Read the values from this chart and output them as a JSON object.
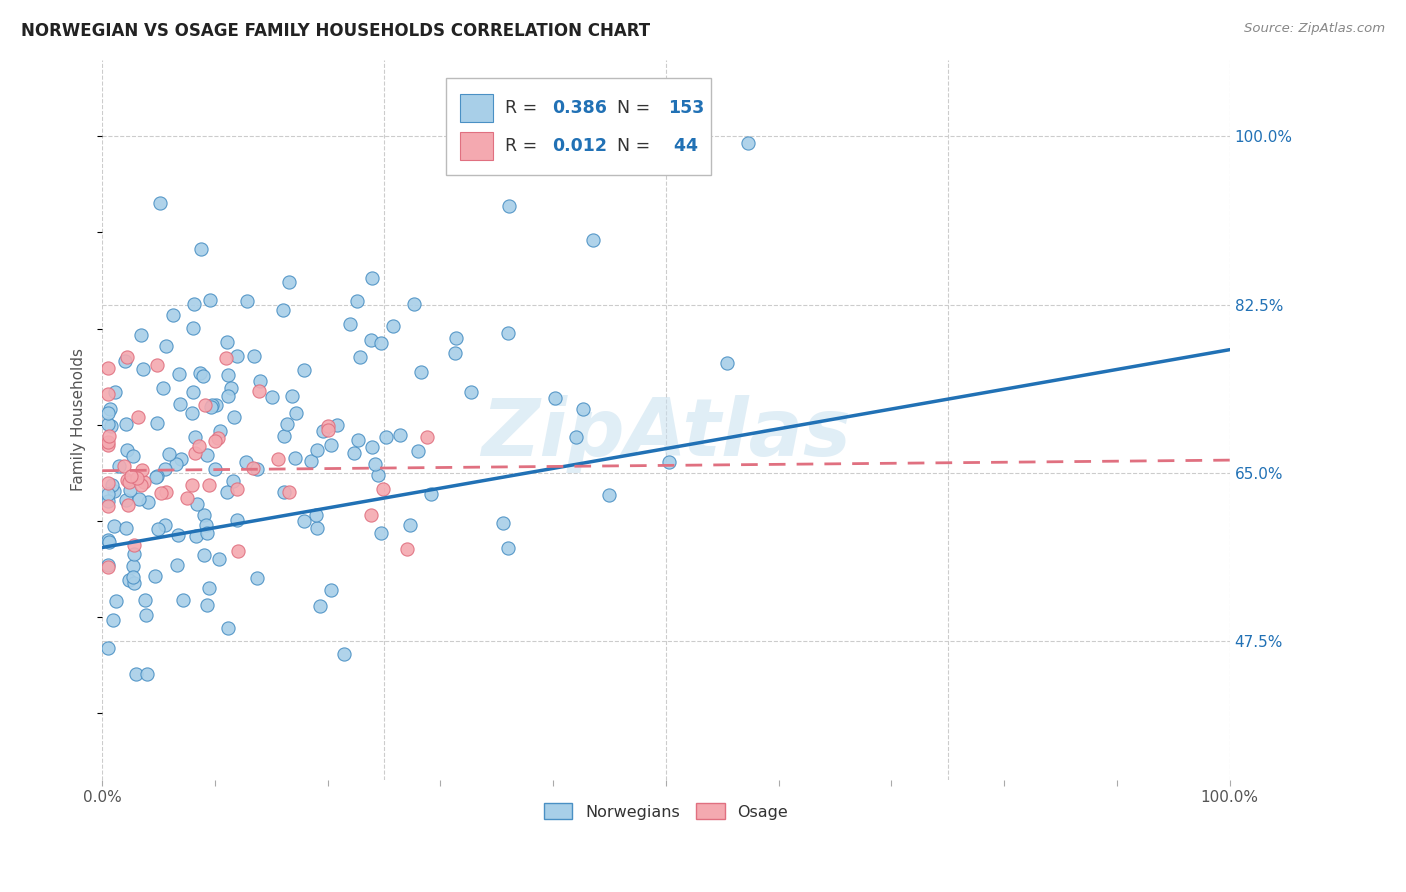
{
  "title": "NORWEGIAN VS OSAGE FAMILY HOUSEHOLDS CORRELATION CHART",
  "source": "Source: ZipAtlas.com",
  "ylabel": "Family Households",
  "y_tick_labels": [
    "47.5%",
    "65.0%",
    "82.5%",
    "100.0%"
  ],
  "y_tick_values": [
    0.475,
    0.65,
    0.825,
    1.0
  ],
  "x_range": [
    0.0,
    1.0
  ],
  "y_range": [
    0.33,
    1.08
  ],
  "legend_r_norwegian": "0.386",
  "legend_n_norwegian": "153",
  "legend_r_osage": "0.012",
  "legend_n_osage": "44",
  "color_norwegian_fill": "#a8cfe8",
  "color_norwegian_edge": "#4a90c4",
  "color_norwegian_line": "#2171b5",
  "color_osage_fill": "#f4a9b0",
  "color_osage_edge": "#e07080",
  "color_osage_line": "#e07080",
  "watermark": "ZipAtlas",
  "background_color": "#ffffff",
  "grid_color": "#cccccc",
  "nor_trend_y0": 0.572,
  "nor_trend_y1": 0.778,
  "osa_trend_y0": 0.652,
  "osa_trend_y1": 0.663
}
